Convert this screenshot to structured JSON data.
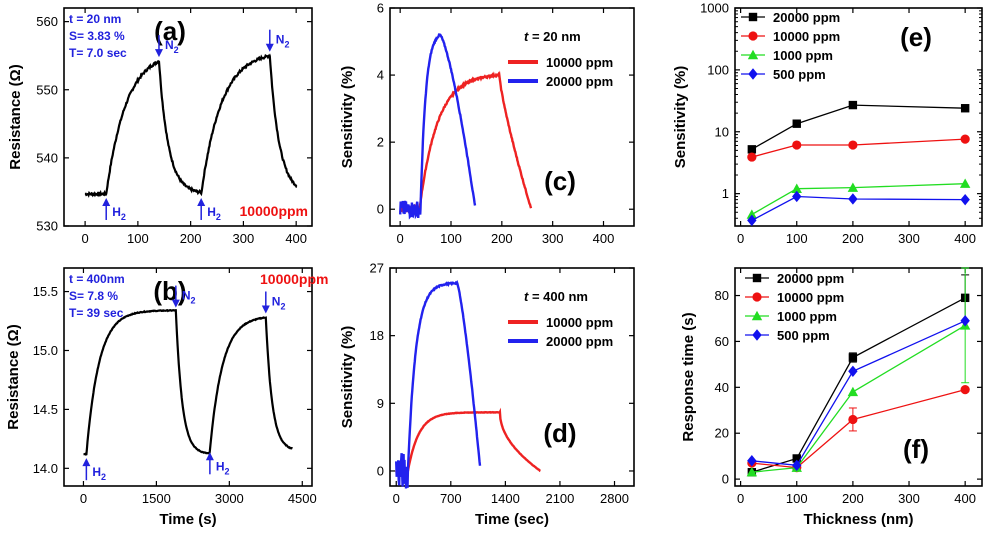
{
  "panels": {
    "a": {
      "label": "(a)",
      "ylabel": "Resistance (Ω)",
      "xlim": [
        -40,
        430
      ],
      "ylim": [
        530,
        562
      ],
      "xticks": [
        0,
        100,
        200,
        300,
        400
      ],
      "yticks": [
        530,
        540,
        550,
        560
      ],
      "info": [
        "t = 20 nm",
        "S= 3.83 %",
        "T= 7.0 sec"
      ],
      "conc": "10000ppm",
      "markers": [
        {
          "type": "H2",
          "x": 40,
          "y": 534.7,
          "sym": "H",
          "sub": "2"
        },
        {
          "type": "N2",
          "x": 140,
          "y": 554.2,
          "sym": "N",
          "sub": "2"
        },
        {
          "type": "H2",
          "x": 220,
          "y": 534.7,
          "sym": "H",
          "sub": "2"
        },
        {
          "type": "N2",
          "x": 350,
          "y": 555.0,
          "sym": "N",
          "sub": "2"
        }
      ],
      "cycles": [
        {
          "on": 40,
          "off": 140,
          "end": 220,
          "base": 534.7,
          "peak": 554.2
        },
        {
          "on": 220,
          "off": 350,
          "end": 402,
          "base": 534.7,
          "peak": 555.0
        }
      ],
      "start": 0
    },
    "b": {
      "label": "(b)",
      "ylabel": "Resistance (Ω)",
      "xlabel": "Time (s)",
      "xlim": [
        -400,
        4700
      ],
      "ylim": [
        13.85,
        15.7
      ],
      "xticks": [
        0,
        1500,
        3000,
        4500
      ],
      "yticks": [
        14.0,
        14.5,
        15.0,
        15.5
      ],
      "info": [
        "t = 400nm",
        "S= 7.8 %",
        "T= 39 sec"
      ],
      "conc": "10000ppm",
      "markers": [
        {
          "type": "H2",
          "x": 60,
          "y": 14.12,
          "sym": "H",
          "sub": "2"
        },
        {
          "type": "N2",
          "x": 1900,
          "y": 15.33,
          "sym": "N",
          "sub": "2"
        },
        {
          "type": "H2",
          "x": 2600,
          "y": 14.17,
          "sym": "H",
          "sub": "2"
        },
        {
          "type": "N2",
          "x": 3750,
          "y": 15.28,
          "sym": "N",
          "sub": "2"
        }
      ],
      "cycles": [
        {
          "on": 60,
          "off": 1900,
          "end": 2600,
          "base": 14.12,
          "peak": 15.34
        },
        {
          "on": 2600,
          "off": 3750,
          "end": 4300,
          "base": 14.15,
          "peak": 15.28
        }
      ],
      "start": 0
    },
    "c": {
      "label": "(c)",
      "ylabel": "Sensitivity (%)",
      "xlim": [
        -20,
        460
      ],
      "ylim": [
        -0.5,
        6
      ],
      "xticks": [
        0,
        100,
        200,
        300,
        400
      ],
      "yticks": [
        0,
        2,
        4,
        6
      ],
      "legend_title": "t = 20 nm",
      "series": [
        {
          "name": "10000 ppm",
          "color": "#ee2222",
          "on": 38,
          "top": 195,
          "end": 258,
          "peak": 4.0
        },
        {
          "name": "20000 ppm",
          "color": "#2222ee",
          "on": 40,
          "top": 78,
          "end": 148,
          "peak": 5.2
        }
      ]
    },
    "d": {
      "label": "(d)",
      "ylabel": "Sensitivity (%)",
      "xlabel": "Time (sec)",
      "xlim": [
        -80,
        3050
      ],
      "ylim": [
        -2,
        27
      ],
      "xticks": [
        0,
        700,
        1400,
        2100,
        2800
      ],
      "yticks": [
        0,
        9,
        18,
        27
      ],
      "legend_title": "t = 400 nm",
      "series": [
        {
          "name": "10000 ppm",
          "color": "#ee2222",
          "on": 150,
          "top": 1330,
          "end": 1850,
          "peak": 7.8
        },
        {
          "name": "20000 ppm",
          "color": "#2222ee",
          "on": 150,
          "top": 780,
          "end": 1080,
          "peak": 25.0
        }
      ]
    },
    "e": {
      "label": "(e)",
      "ylabel": "Sensitivity (%)",
      "xlim": [
        -10,
        430
      ],
      "ylim_log": [
        0.3,
        1000
      ],
      "xticks": [
        0,
        100,
        200,
        300,
        400
      ],
      "yticks": [
        1,
        10,
        100,
        1000
      ],
      "ytick_labels": [
        "1",
        "10",
        "100",
        "1000"
      ]
    },
    "f": {
      "label": "(f)",
      "ylabel": "Response time (s)",
      "xlabel": "Thickness (nm)",
      "xlim": [
        -10,
        430
      ],
      "ylim": [
        -3,
        92
      ],
      "xticks": [
        0,
        100,
        200,
        300,
        400
      ],
      "yticks": [
        0,
        20,
        40,
        60,
        80
      ]
    }
  },
  "chart_data": [
    {
      "type": "line",
      "panel": "(e)",
      "title": "",
      "xlabel": "",
      "ylabel": "Sensitivity (%)",
      "yscale": "log",
      "x": [
        20,
        100,
        200,
        400
      ],
      "series": [
        {
          "name": "20000 ppm",
          "color": "#000000",
          "marker": "square",
          "values": [
            5.2,
            13.5,
            27,
            24
          ]
        },
        {
          "name": "10000 ppm",
          "color": "#ee1111",
          "marker": "circle",
          "values": [
            3.9,
            6.1,
            6.1,
            7.6
          ]
        },
        {
          "name": "1000 ppm",
          "color": "#22dd22",
          "marker": "triangle",
          "values": [
            0.46,
            1.2,
            1.25,
            1.45
          ]
        },
        {
          "name": "500 ppm",
          "color": "#1111ee",
          "marker": "diamond",
          "values": [
            0.37,
            0.9,
            0.82,
            0.8
          ]
        }
      ],
      "ylim": [
        0.3,
        1000
      ]
    },
    {
      "type": "line",
      "panel": "(f)",
      "title": "",
      "xlabel": "Thickness (nm)",
      "ylabel": "Response time (s)",
      "x": [
        20,
        100,
        200,
        400
      ],
      "series": [
        {
          "name": "20000 ppm",
          "color": "#000000",
          "marker": "square",
          "values": [
            3,
            9,
            53,
            79
          ],
          "err": [
            0,
            1,
            2,
            10
          ]
        },
        {
          "name": "10000 ppm",
          "color": "#ee1111",
          "marker": "circle",
          "values": [
            7,
            5,
            26,
            39
          ],
          "err": [
            0,
            0,
            5,
            0
          ]
        },
        {
          "name": "1000 ppm",
          "color": "#22dd22",
          "marker": "triangle",
          "values": [
            3,
            5,
            38,
            67
          ],
          "err": [
            0,
            0,
            0,
            25
          ]
        },
        {
          "name": "500 ppm",
          "color": "#1111ee",
          "marker": "diamond",
          "values": [
            8,
            6,
            47,
            69
          ],
          "err": [
            0,
            0,
            0,
            0
          ]
        }
      ],
      "ylim": [
        -3,
        92
      ]
    }
  ]
}
